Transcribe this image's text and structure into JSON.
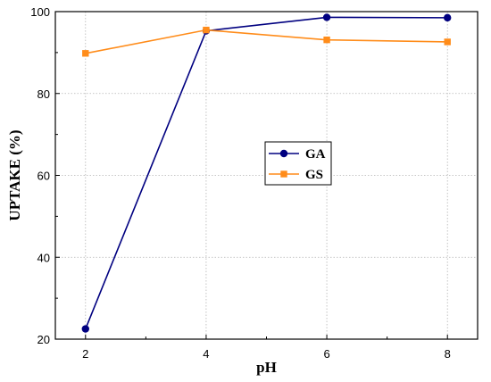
{
  "chart_data": {
    "type": "line",
    "xlabel": "pH",
    "ylabel": "UPTAKE (%)",
    "x": [
      2,
      4,
      6,
      8
    ],
    "xlim": [
      1.5,
      8.5
    ],
    "ylim": [
      20,
      100
    ],
    "xticks": [
      2,
      4,
      6,
      8
    ],
    "yticks": [
      20,
      40,
      60,
      80,
      100
    ],
    "grid": true,
    "legend_position": "center",
    "series": [
      {
        "name": "GA",
        "color": "#000080",
        "marker": "circle",
        "values": [
          22.5,
          95.3,
          98.6,
          98.5
        ]
      },
      {
        "name": "GS",
        "color": "#ff8c1a",
        "marker": "square",
        "values": [
          89.8,
          95.5,
          93.1,
          92.6
        ]
      }
    ]
  }
}
